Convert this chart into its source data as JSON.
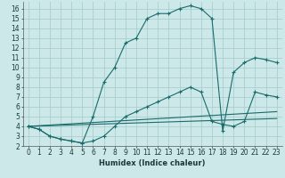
{
  "background_color": "#cce8e8",
  "grid_color": "#aacece",
  "line_color": "#1a6b6b",
  "xlabel": "Humidex (Indice chaleur)",
  "xlim": [
    -0.5,
    23.5
  ],
  "ylim": [
    2,
    16.7
  ],
  "xticks": [
    0,
    1,
    2,
    3,
    4,
    5,
    6,
    7,
    8,
    9,
    10,
    11,
    12,
    13,
    14,
    15,
    16,
    17,
    18,
    19,
    20,
    21,
    22,
    23
  ],
  "yticks": [
    2,
    3,
    4,
    5,
    6,
    7,
    8,
    9,
    10,
    11,
    12,
    13,
    14,
    15,
    16
  ],
  "line1_x": [
    0,
    1,
    2,
    3,
    4,
    5,
    6,
    7,
    8,
    9,
    10,
    11,
    12,
    13,
    14,
    15,
    16,
    17,
    18,
    19,
    20,
    21,
    22,
    23
  ],
  "line1_y": [
    4,
    3.7,
    3,
    2.7,
    2.5,
    2.3,
    5.0,
    8.5,
    10.0,
    12.5,
    13.0,
    15.0,
    15.5,
    15.5,
    16.0,
    16.3,
    16.0,
    15.0,
    3.5,
    9.5,
    10.5,
    11.0,
    10.8,
    10.5
  ],
  "line2_x": [
    0,
    1,
    2,
    3,
    4,
    5,
    6,
    7,
    8,
    9,
    10,
    11,
    12,
    13,
    14,
    15,
    16,
    17,
    18,
    19,
    20,
    21,
    22,
    23
  ],
  "line2_y": [
    4,
    3.7,
    3,
    2.7,
    2.5,
    2.3,
    2.5,
    3.0,
    4.0,
    5.0,
    5.5,
    6.0,
    6.5,
    7.0,
    7.5,
    8.0,
    7.5,
    4.5,
    4.2,
    4.0,
    4.5,
    7.5,
    7.2,
    7.0
  ],
  "line3_x": [
    0,
    23
  ],
  "line3_y": [
    4.0,
    5.5
  ],
  "line4_x": [
    0,
    23
  ],
  "line4_y": [
    4.0,
    4.8
  ]
}
